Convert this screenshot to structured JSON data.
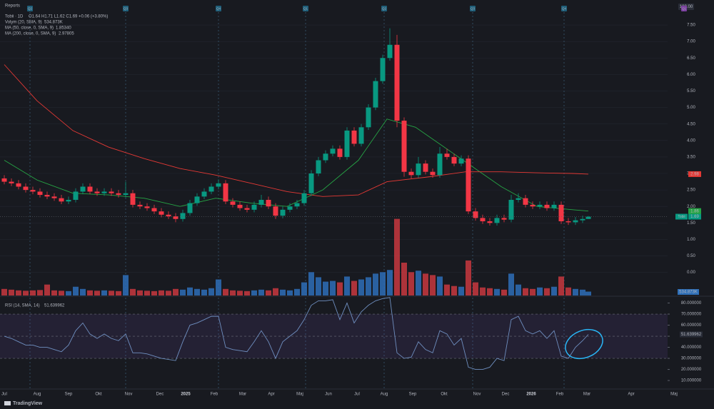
{
  "header": {
    "reports": "Reports",
    "scale_label": "100.00",
    "symbol": "Tobii · 1D",
    "ohlc": "O1.64 H1.71 L1.62 C1.69 +0.06 (+3.80%)"
  },
  "footer": {
    "brand": "TradingView"
  },
  "chart_data": [
    {
      "type": "candlestick",
      "x": [
        2,
        7,
        12,
        17,
        22,
        27,
        32,
        37,
        42,
        47,
        52,
        57,
        62,
        67,
        72,
        77,
        82,
        87,
        92,
        97,
        102,
        107,
        112,
        117,
        122,
        127,
        132,
        137,
        142,
        147,
        152,
        157,
        162,
        167,
        172,
        177,
        182,
        187,
        192,
        197,
        202,
        207,
        212,
        217,
        222,
        227,
        232,
        237,
        242,
        247,
        252,
        257,
        262,
        267,
        272,
        277,
        282,
        287,
        292,
        297,
        302,
        307,
        312,
        317,
        322,
        327,
        332,
        337,
        342,
        347,
        352,
        357,
        362,
        367,
        372,
        377,
        382,
        387,
        392,
        397,
        402,
        407,
        411
      ],
      "open": [
        2.85,
        2.75,
        2.7,
        2.6,
        2.5,
        2.45,
        2.35,
        2.3,
        2.25,
        2.15,
        2.2,
        2.45,
        2.6,
        2.45,
        2.4,
        2.45,
        2.4,
        2.35,
        2.4,
        2.05,
        2.0,
        1.95,
        1.85,
        1.75,
        1.7,
        1.62,
        1.8,
        2.1,
        2.3,
        2.45,
        2.6,
        2.7,
        2.15,
        2.05,
        1.95,
        1.9,
        2.05,
        2.2,
        2.0,
        1.72,
        1.9,
        2.0,
        2.1,
        2.4,
        3.0,
        3.4,
        3.6,
        3.75,
        3.5,
        4.3,
        3.9,
        4.4,
        5.0,
        5.8,
        6.5,
        6.9,
        4.6,
        3.05,
        2.95,
        3.3,
        3.05,
        2.95,
        3.6,
        3.5,
        3.3,
        3.45,
        1.85,
        1.65,
        1.55,
        1.5,
        1.65,
        1.6,
        2.2,
        2.25,
        2.05,
        2.0,
        2.05,
        1.95,
        2.05,
        1.55,
        1.52,
        1.58,
        1.62
      ],
      "high": [
        2.95,
        2.85,
        2.8,
        2.7,
        2.6,
        2.55,
        2.45,
        2.4,
        2.35,
        2.3,
        2.55,
        2.7,
        2.7,
        2.55,
        2.55,
        2.55,
        2.5,
        2.75,
        2.5,
        2.15,
        2.1,
        2.05,
        1.95,
        1.85,
        1.8,
        1.9,
        2.2,
        2.4,
        2.55,
        2.7,
        2.82,
        2.8,
        2.25,
        2.15,
        2.05,
        2.15,
        2.35,
        2.3,
        2.1,
        2.0,
        2.1,
        2.2,
        2.5,
        3.1,
        3.5,
        3.7,
        3.85,
        3.85,
        4.4,
        4.4,
        4.5,
        5.1,
        5.9,
        6.6,
        7.4,
        7.2,
        4.7,
        3.15,
        3.5,
        3.4,
        3.15,
        3.8,
        3.75,
        3.6,
        3.55,
        3.55,
        1.95,
        1.75,
        1.65,
        1.75,
        1.75,
        2.35,
        2.4,
        2.35,
        2.15,
        2.15,
        2.15,
        2.15,
        2.15,
        1.65,
        1.68,
        1.72,
        1.71
      ],
      "low": [
        2.67,
        2.62,
        2.52,
        2.42,
        2.37,
        2.27,
        2.22,
        2.17,
        2.07,
        2.07,
        2.12,
        2.37,
        2.37,
        2.32,
        2.32,
        2.32,
        2.27,
        2.27,
        1.97,
        1.92,
        1.87,
        1.77,
        1.67,
        1.62,
        1.52,
        1.54,
        1.72,
        2.02,
        2.22,
        2.37,
        2.52,
        2.07,
        1.97,
        1.87,
        1.82,
        1.82,
        1.97,
        1.92,
        1.62,
        1.64,
        1.82,
        1.92,
        2.02,
        2.32,
        2.92,
        3.32,
        3.52,
        3.42,
        3.42,
        3.82,
        3.82,
        4.32,
        4.92,
        5.72,
        6.42,
        4.4,
        2.9,
        2.85,
        2.87,
        2.97,
        2.87,
        2.87,
        3.42,
        3.22,
        3.22,
        1.77,
        1.57,
        1.47,
        1.42,
        1.42,
        1.52,
        1.52,
        2.12,
        1.97,
        1.92,
        1.92,
        1.87,
        1.87,
        1.47,
        1.44,
        1.44,
        1.5,
        1.62
      ],
      "close": [
        2.75,
        2.7,
        2.6,
        2.5,
        2.45,
        2.35,
        2.3,
        2.25,
        2.15,
        2.2,
        2.45,
        2.6,
        2.45,
        2.4,
        2.45,
        2.4,
        2.35,
        2.4,
        2.05,
        2.0,
        1.95,
        1.85,
        1.75,
        1.7,
        1.62,
        1.8,
        2.1,
        2.3,
        2.45,
        2.6,
        2.7,
        2.15,
        2.05,
        1.95,
        1.9,
        2.05,
        2.2,
        2.0,
        1.72,
        1.9,
        2.0,
        2.1,
        2.4,
        3.0,
        3.4,
        3.6,
        3.75,
        3.5,
        4.3,
        3.9,
        4.4,
        5.0,
        5.8,
        6.5,
        6.9,
        4.6,
        3.05,
        2.95,
        3.3,
        3.05,
        2.95,
        3.6,
        3.5,
        3.3,
        3.45,
        1.85,
        1.65,
        1.55,
        1.5,
        1.65,
        1.6,
        2.2,
        2.25,
        2.05,
        2.0,
        2.05,
        1.95,
        2.05,
        1.55,
        1.52,
        1.58,
        1.62,
        1.69
      ],
      "up_color": "#089981",
      "down_color": "#f23645",
      "symbol_tag": "Tobii",
      "xlim": [
        -1,
        499
      ],
      "ylim": [
        -0.7,
        8.15
      ],
      "yticks": [
        {
          "value": 0,
          "label": "0.00"
        },
        {
          "value": 0.5,
          "label": "0.50"
        },
        {
          "value": 1,
          "label": "1.00"
        },
        {
          "value": 1.5,
          "label": "1.50"
        },
        {
          "value": 2,
          "label": "2.00"
        },
        {
          "value": 2.5,
          "label": "2.50"
        },
        {
          "value": 3,
          "label": "3.00"
        },
        {
          "value": 3.5,
          "label": "3.50"
        },
        {
          "value": 4,
          "label": "4.00"
        },
        {
          "value": 4.5,
          "label": "4.50"
        },
        {
          "value": 5,
          "label": "5.00"
        },
        {
          "value": 5.5,
          "label": "5.50"
        },
        {
          "value": 6,
          "label": "6.00"
        },
        {
          "value": 6.5,
          "label": "6.50"
        },
        {
          "value": 7,
          "label": "7.00"
        },
        {
          "value": 7.5,
          "label": "7.50"
        }
      ],
      "xticks": [
        {
          "value": 2,
          "label": "Jul"
        },
        {
          "value": 25,
          "label": "Aug"
        },
        {
          "value": 47,
          "label": "Sep"
        },
        {
          "value": 68,
          "label": "Okt"
        },
        {
          "value": 89,
          "label": "Nov"
        },
        {
          "value": 111,
          "label": "Dec"
        },
        {
          "value": 129,
          "label": "2025"
        },
        {
          "value": 149,
          "label": "Feb"
        },
        {
          "value": 169,
          "label": "Mar"
        },
        {
          "value": 189,
          "label": "Apr"
        },
        {
          "value": 209,
          "label": "Maj"
        },
        {
          "value": 229,
          "label": "Jun"
        },
        {
          "value": 249,
          "label": "Jul"
        },
        {
          "value": 268,
          "label": "Aug"
        },
        {
          "value": 288,
          "label": "Sep"
        },
        {
          "value": 310,
          "label": "Okt"
        },
        {
          "value": 333,
          "label": "Nov"
        },
        {
          "value": 353,
          "label": "Dec"
        },
        {
          "value": 371,
          "label": "2026"
        },
        {
          "value": 391,
          "label": "Feb"
        },
        {
          "value": 410,
          "label": "Mar"
        },
        {
          "value": 441,
          "label": "Apr"
        },
        {
          "value": 471,
          "label": "Maj"
        }
      ],
      "series": [
        {
          "name": "MA (50, close, 0, SMA, 9)",
          "legend_value": "1.85340",
          "color": "#26a545",
          "x": [
            2,
            25,
            50,
            75,
            100,
            125,
            150,
            175,
            200,
            225,
            250,
            270,
            290,
            310,
            330,
            350,
            375,
            400,
            411
          ],
          "values": [
            3.4,
            2.8,
            2.4,
            2.35,
            2.25,
            2.0,
            2.25,
            2.1,
            2.0,
            2.5,
            3.4,
            4.65,
            4.4,
            3.8,
            3.2,
            2.6,
            2.0,
            1.9,
            1.86
          ]
        },
        {
          "name": "MA (200, close, 0, SMA, 9)",
          "legend_value": "2.97805",
          "color": "#e53935",
          "x": [
            2,
            25,
            50,
            75,
            100,
            125,
            150,
            175,
            200,
            225,
            250,
            270,
            300,
            325,
            350,
            375,
            400,
            411
          ],
          "values": [
            6.3,
            5.2,
            4.3,
            3.8,
            3.45,
            3.15,
            2.95,
            2.7,
            2.45,
            2.3,
            2.35,
            2.75,
            2.9,
            3.05,
            3.05,
            3.02,
            3.0,
            2.98
          ]
        }
      ],
      "volume": {
        "name": "Volym (20, SMA, 9)",
        "legend_value": "534.873K",
        "up_color": "#2e6fb8",
        "down_color": "#c8383f",
        "ylim": [
          0,
          40000000
        ],
        "values": [
          900000,
          800000,
          700000,
          650000,
          700000,
          750000,
          1500000,
          700000,
          650000,
          600000,
          1200000,
          900000,
          700000,
          650000,
          700000,
          650000,
          600000,
          2800000,
          900000,
          700000,
          650000,
          600000,
          700000,
          650000,
          900000,
          800000,
          1100000,
          900000,
          800000,
          1000000,
          2200000,
          900000,
          700000,
          650000,
          600000,
          700000,
          800000,
          700000,
          1000000,
          800000,
          700000,
          900000,
          1800000,
          3200000,
          2500000,
          1900000,
          2000000,
          1800000,
          2600000,
          2000000,
          2200000,
          2500000,
          3000000,
          3200000,
          3500000,
          10500000,
          4500000,
          3200000,
          3400000,
          3000000,
          2800000,
          2600000,
          1500000,
          1300000,
          1200000,
          4800000,
          1800000,
          1100000,
          1000000,
          900000,
          800000,
          3000000,
          1500000,
          1000000,
          900000,
          1100000,
          1000000,
          1200000,
          2600000,
          1100000,
          900000,
          800000,
          534873
        ]
      },
      "events": [
        {
          "label": "Q2",
          "x": 20,
          "color": "#1f5f7a"
        },
        {
          "label": "Q3",
          "x": 87,
          "color": "#1f5f7a"
        },
        {
          "label": "Q4",
          "x": 152,
          "color": "#1f5f7a"
        },
        {
          "label": "Q1",
          "x": 213,
          "color": "#1f5f7a"
        },
        {
          "label": "Q2",
          "x": 268,
          "color": "#1f5f7a"
        },
        {
          "label": "Q3",
          "x": 330,
          "color": "#1f5f7a"
        },
        {
          "label": "Q4",
          "x": 394,
          "color": "#1f5f7a"
        },
        {
          "label": "Q1",
          "x": 478,
          "color": "#7b3fa0"
        }
      ]
    },
    {
      "type": "line",
      "title": "RSI (14, SMA, 14)",
      "color": "#6f8fc0",
      "band_color": "#7e57c2",
      "x": [
        2,
        7,
        12,
        17,
        22,
        27,
        32,
        37,
        42,
        47,
        52,
        57,
        62,
        67,
        72,
        77,
        82,
        87,
        92,
        97,
        102,
        107,
        112,
        117,
        122,
        127,
        132,
        137,
        142,
        147,
        152,
        157,
        162,
        167,
        172,
        177,
        182,
        187,
        192,
        197,
        202,
        207,
        212,
        217,
        222,
        227,
        232,
        237,
        242,
        247,
        252,
        257,
        262,
        267,
        272,
        277,
        282,
        287,
        292,
        297,
        302,
        307,
        312,
        317,
        322,
        327,
        332,
        337,
        342,
        347,
        352,
        357,
        362,
        367,
        372,
        377,
        382,
        387,
        392,
        397,
        402,
        407,
        411
      ],
      "values": [
        50,
        48,
        45,
        42,
        42,
        40,
        40,
        38,
        36,
        42,
        55,
        62,
        52,
        48,
        52,
        48,
        46,
        52,
        35,
        35,
        34,
        32,
        30,
        29,
        28,
        45,
        60,
        62,
        65,
        68,
        68,
        40,
        38,
        37,
        36,
        45,
        55,
        45,
        30,
        45,
        50,
        55,
        65,
        78,
        82,
        82,
        83,
        65,
        80,
        62,
        72,
        78,
        82,
        84,
        85,
        35,
        30,
        31,
        45,
        38,
        35,
        55,
        52,
        42,
        48,
        22,
        20,
        20,
        22,
        30,
        28,
        65,
        68,
        55,
        52,
        55,
        48,
        55,
        32,
        30,
        40,
        46,
        51.639962
      ],
      "bands": [
        70,
        50,
        30
      ],
      "xlim": [
        -1,
        499
      ],
      "ylim": [
        2.3,
        85.5
      ],
      "yticks": [
        {
          "value": 10,
          "label": "10.000000"
        },
        {
          "value": 20,
          "label": "20.000000"
        },
        {
          "value": 30,
          "label": "30.000000"
        },
        {
          "value": 40,
          "label": "40.000000"
        },
        {
          "value": 50,
          "label": "50.000000"
        },
        {
          "value": 60,
          "label": "60.000000"
        },
        {
          "value": 70,
          "label": "70.000000"
        },
        {
          "value": 80,
          "label": "80.000000"
        }
      ]
    }
  ]
}
